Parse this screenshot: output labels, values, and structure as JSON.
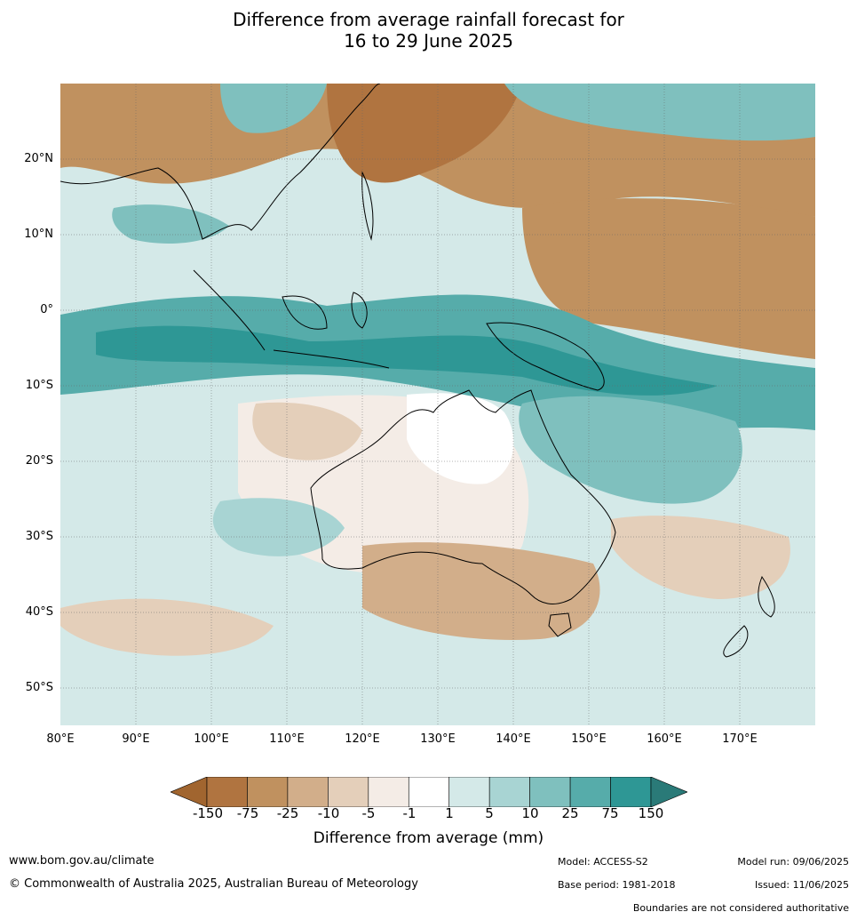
{
  "title_line1": "Difference from average rainfall forecast for",
  "title_line2": "16 to 29 June 2025",
  "map": {
    "lat_labels": [
      "20°N",
      "10°N",
      "0°",
      "10°S",
      "20°S",
      "30°S",
      "40°S",
      "50°S"
    ],
    "lon_labels": [
      "80°E",
      "90°E",
      "100°E",
      "110°E",
      "120°E",
      "130°E",
      "140°E",
      "150°E",
      "160°E",
      "170°E"
    ],
    "extent": {
      "lon_min": 80,
      "lon_max": 180,
      "lat_min": -55,
      "lat_max": 30
    }
  },
  "legend": {
    "caption": "Difference from average (mm)",
    "ticks": [
      "-150",
      "-75",
      "-25",
      "-10",
      "-5",
      "-1",
      "1",
      "5",
      "10",
      "25",
      "75",
      "150"
    ],
    "colors": [
      "#a1652f",
      "#b07440",
      "#c0915f",
      "#d2ae8a",
      "#e4cfba",
      "#f4ece6",
      "#ffffff",
      "#d4e9e8",
      "#a8d4d3",
      "#7fc0be",
      "#56acaa",
      "#2e9795",
      "#2a7a78"
    ]
  },
  "footer": {
    "url": "www.bom.gov.au/climate",
    "copyright": "© Commonwealth of Australia 2025, Australian Bureau of Meteorology",
    "model": "Model: ACCESS-S2",
    "base_period": "Base period: 1981-2018",
    "model_run": "Model run: 09/06/2025",
    "issued": "Issued: 11/06/2025",
    "disclaimer": "Boundaries are not considered authoritative"
  }
}
